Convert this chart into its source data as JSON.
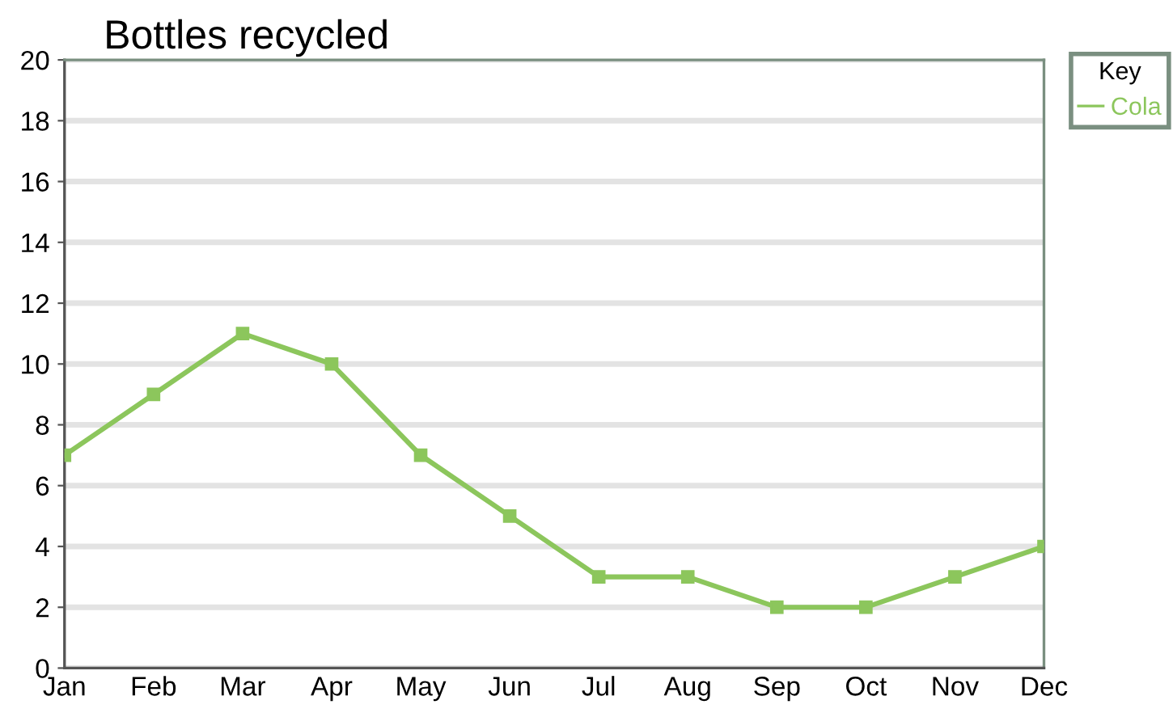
{
  "chart_data": {
    "type": "line",
    "title": "Bottles recycled",
    "legend_title": "Key",
    "categories": [
      "Jan",
      "Feb",
      "Mar",
      "Apr",
      "May",
      "Jun",
      "Jul",
      "Aug",
      "Sep",
      "Oct",
      "Nov",
      "Dec"
    ],
    "series": [
      {
        "name": "Cola",
        "color": "#8cc65c",
        "values": [
          7,
          9,
          11,
          10,
          7,
          5,
          3,
          3,
          2,
          2,
          3,
          4
        ]
      }
    ],
    "ylim": [
      0,
      20
    ],
    "yticks": [
      0,
      2,
      4,
      6,
      8,
      10,
      12,
      14,
      16,
      18,
      20
    ],
    "grid": "y",
    "legend": "top right",
    "marker": "square",
    "line_style": "solid"
  }
}
